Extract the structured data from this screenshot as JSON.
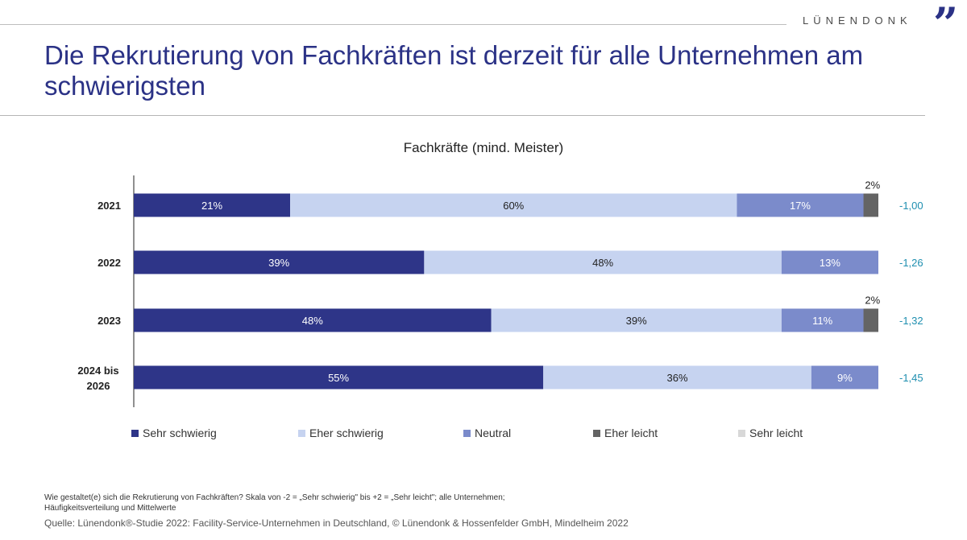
{
  "header": {
    "brand": "LÜNENDONK",
    "brand_mark": "”",
    "title": "Die Rekrutierung von Fachkräften ist derzeit für alle Unternehmen am schwierigsten"
  },
  "chart_data": {
    "type": "bar",
    "orientation": "horizontal",
    "stacked": true,
    "title": "Fachkräfte (mind. Meister)",
    "categories": [
      "2021",
      "2022",
      "2023",
      "2024 bis 2026"
    ],
    "series": [
      {
        "name": "Sehr schwierig",
        "color": "#2e3588",
        "values": [
          21,
          39,
          48,
          55
        ],
        "labels": [
          "21%",
          "39%",
          "48%",
          "55%"
        ]
      },
      {
        "name": "Eher schwierig",
        "color": "#c6d3f0",
        "values": [
          60,
          48,
          39,
          36
        ],
        "labels": [
          "60%",
          "48%",
          "39%",
          "36%"
        ]
      },
      {
        "name": "Neutral",
        "color": "#7b8bcb",
        "values": [
          17,
          13,
          11,
          9
        ],
        "labels": [
          "17%",
          "13%",
          "11%",
          "9%"
        ]
      },
      {
        "name": "Eher leicht",
        "color": "#646464",
        "values": [
          2,
          0,
          2,
          0
        ],
        "labels": [
          "2%",
          "",
          "2%",
          ""
        ]
      },
      {
        "name": "Sehr leicht",
        "color": "#d8d8d8",
        "values": [
          0,
          0,
          0,
          0
        ],
        "labels": [
          "",
          "",
          "",
          ""
        ]
      }
    ],
    "mean_values": [
      "-1,00",
      "-1,26",
      "-1,32",
      "-1,45"
    ],
    "mean_color": "#1f8fb0",
    "xlim": [
      0,
      100
    ],
    "grid": false,
    "legend_position": "bottom"
  },
  "footnote": {
    "line1": "Wie gestaltet(e) sich die Rekrutierung von Fachkräften? Skala von -2 = „Sehr schwierig\" bis +2 = „Sehr leicht\"; alle Unternehmen;",
    "line2": "Häufigkeitsverteilung und Mittelwerte"
  },
  "source": "Quelle: Lünendonk®-Studie 2022: Facility-Service-Unternehmen in Deutschland, © Lünendonk & Hossenfelder GmbH, Mindelheim 2022"
}
